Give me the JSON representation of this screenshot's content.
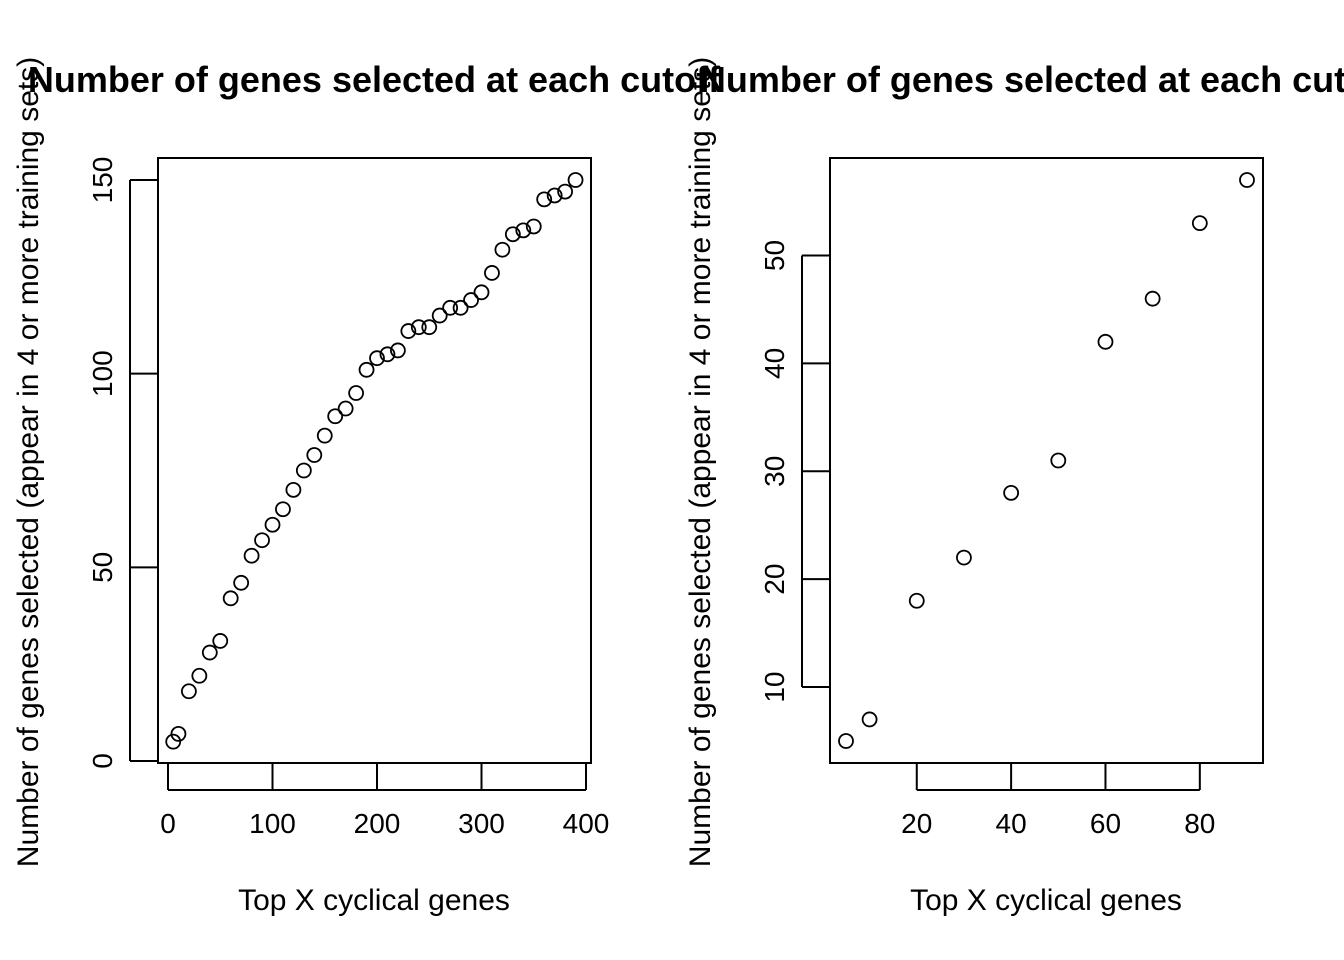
{
  "chart_data": [
    {
      "type": "scatter",
      "title": "Number of genes selected at each cutoff",
      "xlabel": "Top X cyclical genes",
      "ylabel": "Number of genes selected (appear in 4 or more training sets)",
      "xlim": [
        0,
        400
      ],
      "ylim": [
        0,
        150
      ],
      "xticks": [
        "0",
        "100",
        "200",
        "300",
        "400"
      ],
      "yticks": [
        "0",
        "50",
        "100",
        "150"
      ],
      "grid": false,
      "x": [
        5,
        10,
        20,
        30,
        40,
        50,
        60,
        70,
        80,
        90,
        100,
        110,
        120,
        130,
        140,
        150,
        160,
        170,
        180,
        190,
        200,
        210,
        220,
        230,
        240,
        250,
        260,
        270,
        280,
        290,
        300,
        310,
        320,
        330,
        340,
        350,
        360,
        370,
        380,
        390
      ],
      "y": [
        5,
        7,
        18,
        22,
        28,
        31,
        42,
        46,
        53,
        57,
        61,
        65,
        70,
        75,
        79,
        84,
        89,
        91,
        95,
        101,
        104,
        105,
        106,
        111,
        112,
        112,
        115,
        117,
        117,
        119,
        121,
        126,
        132,
        136,
        137,
        138,
        145,
        146,
        147,
        150
      ]
    },
    {
      "type": "scatter",
      "title": "Number of genes selected at each cutoff",
      "xlabel": "Top X cyclical genes",
      "ylabel": "Number of genes selected (appear in 4 or more training sets)",
      "xlim": [
        5,
        90
      ],
      "ylim": [
        5,
        57
      ],
      "xticks": [
        "20",
        "40",
        "60",
        "80"
      ],
      "yticks": [
        "10",
        "20",
        "30",
        "40",
        "50"
      ],
      "grid": false,
      "x": [
        5,
        10,
        20,
        30,
        40,
        50,
        60,
        70,
        80,
        90
      ],
      "y": [
        5,
        7,
        18,
        22,
        28,
        31,
        42,
        46,
        53,
        57
      ]
    }
  ]
}
